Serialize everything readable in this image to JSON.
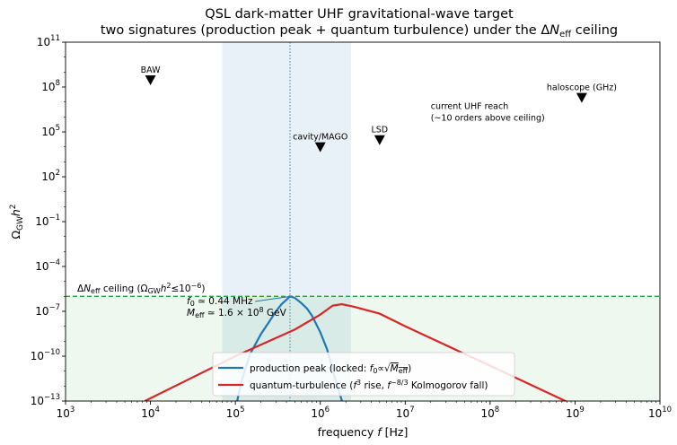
{
  "chart_data": {
    "type": "line",
    "title_line1": "QSL dark-matter UHF gravitational-wave target",
    "title_line2_pre": "two signatures (production peak + quantum turbulence) under the Δ",
    "title_line2_N": "N",
    "title_line2_sub": "eff",
    "title_line2_post": " ceiling",
    "xlabel_pre": "frequency  ",
    "xlabel_f": "f",
    "xlabel_post": "  [Hz]",
    "ylabel_omega": "Ω",
    "ylabel_sub": "GW",
    "ylabel_h": "h",
    "ylabel_sup": "2",
    "xscale": "log",
    "yscale": "log",
    "xlim": [
      1000.0,
      10000000000.0
    ],
    "ylim": [
      1e-13,
      100000000000.0
    ],
    "x_ticks": [
      {
        "base": "10",
        "exp": "3",
        "value": 1000.0
      },
      {
        "base": "10",
        "exp": "4",
        "value": 10000.0
      },
      {
        "base": "10",
        "exp": "5",
        "value": 100000.0
      },
      {
        "base": "10",
        "exp": "6",
        "value": 1000000.0
      },
      {
        "base": "10",
        "exp": "7",
        "value": 10000000.0
      },
      {
        "base": "10",
        "exp": "8",
        "value": 100000000.0
      },
      {
        "base": "10",
        "exp": "9",
        "value": 1000000000.0
      },
      {
        "base": "10",
        "exp": "10",
        "value": 10000000000.0
      }
    ],
    "y_ticks": [
      {
        "base": "10",
        "exp": "−13",
        "value": 1e-13
      },
      {
        "base": "10",
        "exp": "−10",
        "value": 1e-10
      },
      {
        "base": "10",
        "exp": "−7",
        "value": 1e-07
      },
      {
        "base": "10",
        "exp": "−4",
        "value": 0.0001
      },
      {
        "base": "10",
        "exp": "−1",
        "value": 0.1
      },
      {
        "base": "10",
        "exp": "2",
        "value": 100.0
      },
      {
        "base": "10",
        "exp": "5",
        "value": 100000.0
      },
      {
        "base": "10",
        "exp": "8",
        "value": 100000000.0
      },
      {
        "base": "10",
        "exp": "11",
        "value": 100000000000.0
      }
    ],
    "ceiling": {
      "value": 1e-06,
      "label_pre": "Δ",
      "label_N": "N",
      "label_sub": "eff",
      "label_mid": " ceiling (Ω",
      "label_gw": "GW",
      "label_h": "h",
      "label_two": "2",
      "label_le": "≤10",
      "label_exp": "−6",
      "label_close": ")",
      "color": "#2ca02c",
      "shade_color": "#2ca02c"
    },
    "band": {
      "x_start": 70000.0,
      "x_end": 2300000.0,
      "color": "#1f77b4"
    },
    "f0_line": {
      "x": 440000.0,
      "color": "#1f77b4"
    },
    "peak_annotation": {
      "f0_sym": "f",
      "f0_sub": "0",
      "f0_val": " ≃ 0.44 MHz",
      "m_sym": "M",
      "m_sub": "eff",
      "m_val_pre": " ≃ 1.6 × 10",
      "m_val_exp": "8",
      "m_val_post": " GeV",
      "text_x": 20000.0,
      "text_y1": 3e-07,
      "text_y2": 5e-08,
      "arrow_tip": [
        440000.0,
        1e-06
      ],
      "color": "#1f77b4"
    },
    "markers": [
      {
        "label": "BAW",
        "x": 10000.0,
        "y": 300000000.0
      },
      {
        "label": "cavity/MAGO",
        "x": 1000000.0,
        "y": 10000.0
      },
      {
        "label": "LSD",
        "x": 5000000.0,
        "y": 30000.0
      },
      {
        "label": "haloscope (GHz)",
        "x": 1200000000.0,
        "y": 20000000.0
      }
    ],
    "uhf_note": {
      "line1": "current UHF reach",
      "line2": "(~10 orders above ceiling)",
      "x": 20000000.0,
      "y": 1500000.0
    },
    "series": [
      {
        "name_pre": "production peak (locked: ",
        "name_f": "f",
        "name_sub": "0",
        "name_prop": "∝",
        "name_sqrt_M": "M",
        "name_sqrt_sub": "eff",
        "name_post": ")",
        "color": "#1f77b4",
        "x": [
          105000.0,
          120000.0,
          150000.0,
          200000.0,
          250000.0,
          300000.0,
          350000.0,
          400000.0,
          440000.0,
          500000.0,
          600000.0,
          700000.0,
          800000.0,
          1000000.0,
          1200000.0,
          1500000.0,
          1800000.0
        ],
        "y": [
          1e-13,
          3e-12,
          1.5e-10,
          3e-09,
          2e-08,
          1e-07,
          3e-07,
          6e-07,
          1e-06,
          8e-07,
          3.5e-07,
          1.5e-07,
          5e-08,
          4e-09,
          3e-10,
          3e-12,
          1e-13
        ]
      },
      {
        "name_pre": "quantum-turbulence (",
        "name_f1": "f",
        "name_e1": "3",
        "name_mid": " rise, ",
        "name_f2": "f",
        "name_e2": "−8/3",
        "name_post": " Kolmogorov fall)",
        "color": "#d62728",
        "x": [
          8600.0,
          100000.0,
          500000.0,
          1000000.0,
          1400000.0,
          1800000.0,
          2500000.0,
          5000000.0,
          10000000.0,
          100000000.0,
          1000000000.0
        ],
        "y": [
          1e-13,
          1e-10,
          6e-09,
          6e-08,
          2.4e-07,
          3e-07,
          2e-07,
          7e-08,
          1e-08,
          2.3e-11,
          5e-14
        ]
      }
    ]
  }
}
